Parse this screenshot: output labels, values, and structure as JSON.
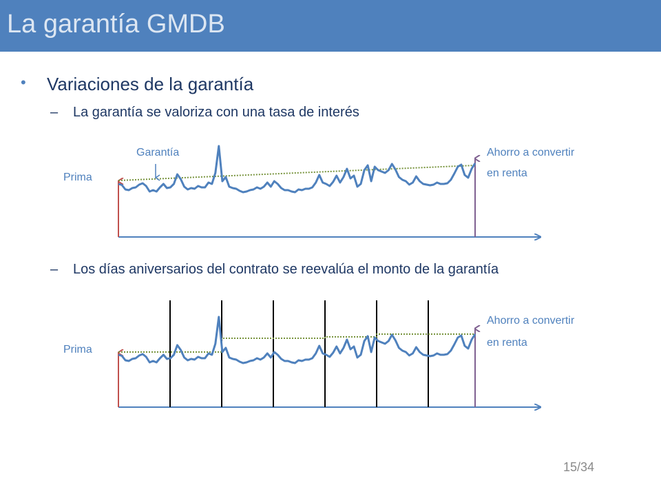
{
  "slide": {
    "title": "La garantía GMDB",
    "bullet": "Variaciones de la garantía",
    "sub1": "La garantía se valoriza con una tasa de interés",
    "sub2": "Los días aniversarios del contrato se reevalúa el monto de la garantía",
    "dash": "–",
    "bullet_glyph": "•",
    "page": "15/34"
  },
  "diagram1": {
    "label_prima": "Prima",
    "label_garantia": "Garantía",
    "label_ahorro_1": "Ahorro a convertir",
    "label_ahorro_2": "en renta"
  },
  "diagram2": {
    "label_prima": "Prima",
    "label_ahorro_1": "Ahorro a convertir",
    "label_ahorro_2": "en renta"
  },
  "colors": {
    "title_bar": "#4f81bd",
    "series": "#4f81bd",
    "guarantee": "#77933c",
    "start_arrow": "#c0504d",
    "end_arrow": "#7f6090",
    "axis": "#4f81bd"
  },
  "series_values": [
    0,
    -1.5,
    -8,
    -9,
    -6,
    -5,
    -1,
    1,
    -3,
    -11,
    -9,
    -11,
    -5,
    0,
    -6,
    -5,
    0,
    14,
    7,
    -4,
    -8,
    -6,
    -7,
    -3,
    -5,
    -5,
    2,
    0,
    16,
    55,
    4,
    10,
    -4,
    -6,
    -7,
    -10,
    -12,
    -11,
    -9,
    -8,
    -5,
    -7,
    -4,
    2,
    -4,
    4,
    0,
    -6,
    -9,
    -9,
    -11,
    -12,
    -8,
    -9,
    -7,
    -7,
    -5,
    2,
    13,
    2,
    0,
    -3,
    3,
    12,
    2,
    10,
    22,
    8,
    12,
    -4,
    0,
    20,
    27,
    4,
    25,
    20,
    18,
    16,
    20,
    29,
    21,
    10,
    6,
    4,
    -1,
    2,
    11,
    4,
    0,
    -1,
    -2,
    -1,
    2,
    0,
    0,
    1,
    6,
    15,
    25,
    28,
    13,
    9,
    22,
    30
  ]
}
